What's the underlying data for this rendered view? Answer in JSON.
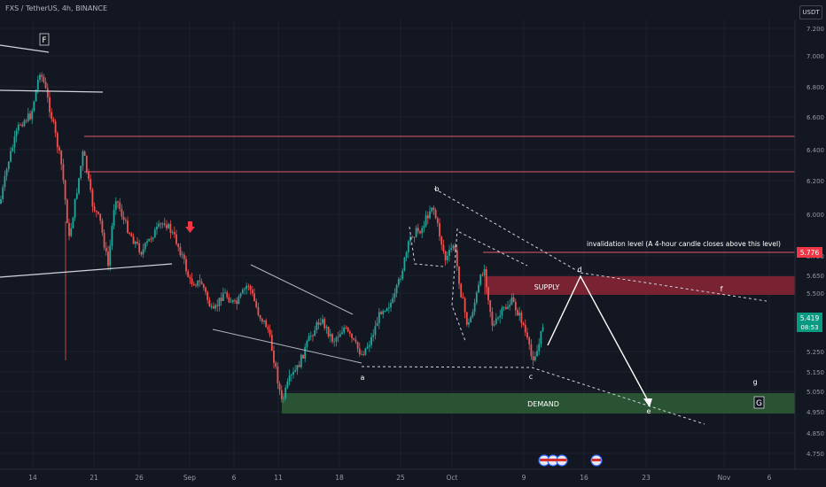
{
  "header": {
    "symbol_title": "FXS / TetherUS, 4h, BINANCE",
    "currency": "USDT"
  },
  "chart_data": {
    "type": "candlestick",
    "ylim": [
      4.7,
      7.3
    ],
    "y_ticks": [
      7.2,
      7.0,
      6.8,
      6.6,
      6.4,
      6.2,
      6.0,
      5.75,
      5.65,
      5.5,
      5.25,
      5.15,
      5.05,
      4.95,
      4.85,
      4.75
    ],
    "x_ticks": [
      "14",
      "21",
      "26",
      "Sep",
      "6",
      "11",
      "18",
      "25",
      "Oct",
      "9",
      "16",
      "23",
      "Nov",
      "6"
    ],
    "price_tags": [
      {
        "value": "5.776",
        "color": "#f23645"
      },
      {
        "value": "5.419",
        "sub": "08:53",
        "color": "#089981"
      }
    ],
    "zones": [
      {
        "label": "SUPPLY",
        "low": 5.56,
        "high": 5.66,
        "color": "#8b2435"
      },
      {
        "label": "DEMAND",
        "low": 4.94,
        "high": 5.04,
        "color": "#2c5a34"
      }
    ],
    "resistance_lines": [
      6.47,
      6.25,
      5.776
    ],
    "wave_labels": [
      "F",
      "b",
      "d",
      "f",
      "a",
      "c",
      "e",
      "g",
      "G"
    ],
    "annotations": [
      "invalidation level (A 4-hour candle closes above this level)"
    ]
  }
}
